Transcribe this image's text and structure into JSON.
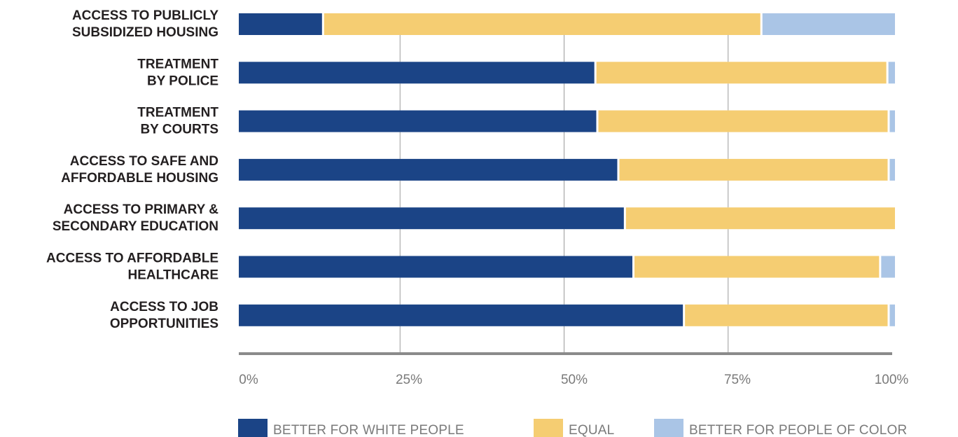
{
  "chart_data": {
    "type": "bar",
    "orientation": "horizontal",
    "stacked": true,
    "categories": [
      [
        "ACCESS TO PUBLICLY",
        "SUBSIDIZED HOUSING"
      ],
      [
        "TREATMENT",
        "BY POLICE"
      ],
      [
        "TREATMENT",
        "BY COURTS"
      ],
      [
        "ACCESS TO SAFE AND",
        "AFFORDABLE HOUSING"
      ],
      [
        "ACCESS TO PRIMARY &",
        "SECONDARY EDUCATION"
      ],
      [
        "ACCESS TO AFFORDABLE",
        "HEALTHCARE"
      ],
      [
        "ACCESS TO JOB",
        "OPPORTUNITIES"
      ]
    ],
    "series": [
      {
        "name": "BETTER FOR WHITE PEOPLE",
        "color": "#1b4486",
        "values": [
          13,
          54.5,
          54.8,
          58,
          59,
          60.3,
          68
        ]
      },
      {
        "name": "EQUAL",
        "color": "#f5cd72",
        "values": [
          66.8,
          44.5,
          44.4,
          41.2,
          41,
          37.6,
          31.2
        ]
      },
      {
        "name": "BETTER FOR PEOPLE OF COLOR",
        "color": "#aac5e6",
        "values": [
          20.2,
          1,
          0.8,
          0.8,
          0,
          2.1,
          0.8
        ]
      }
    ],
    "xlim": [
      0,
      100
    ],
    "x_ticks": [
      "0%",
      "25%",
      "50%",
      "75%",
      "100%"
    ],
    "grid": true,
    "legend_position": "bottom"
  }
}
